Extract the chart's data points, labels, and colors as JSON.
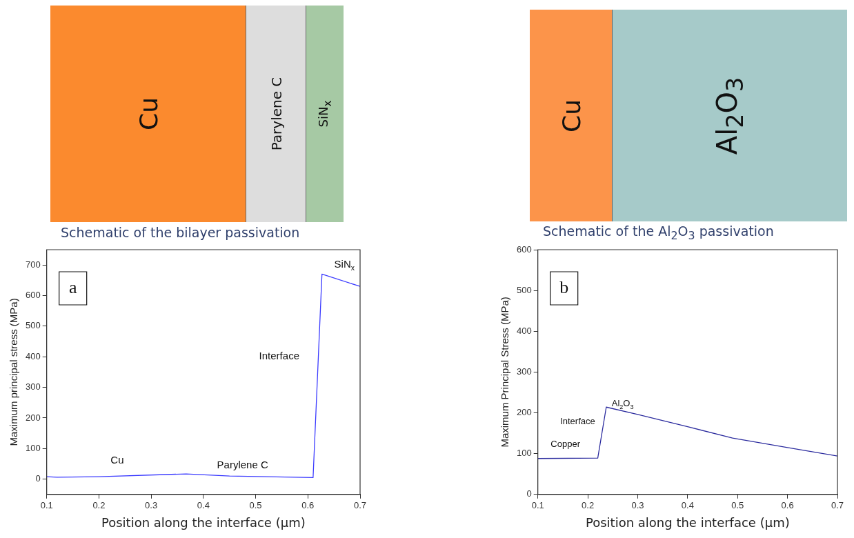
{
  "chart_data": [
    {
      "type": "line",
      "title": "Schematic of the bilayer passivation",
      "xlabel": "Position along the interface (μm)",
      "ylabel": "Maximum principal stress (MPa)",
      "xlim": [
        0.1,
        0.7
      ],
      "xticks": [
        0.1,
        0.2,
        0.3,
        0.4,
        0.5,
        0.6,
        0.7
      ],
      "ylim": [
        -50,
        750
      ],
      "yticks": [
        0,
        100,
        200,
        300,
        400,
        500,
        600,
        700
      ],
      "grid": false,
      "legend": false,
      "marker": "none",
      "line_style": "solid",
      "series": [
        {
          "color": "#3a3aff",
          "x": [
            0.1,
            0.12,
            0.2,
            0.367,
            0.45,
            0.61,
            0.627,
            0.7
          ],
          "values": [
            8,
            6,
            8,
            17,
            10,
            5,
            670,
            630
          ]
        }
      ],
      "annotations": [
        "a",
        "Cu",
        "Parylene C",
        "SiN$_{x}$",
        "Cu",
        "Parylene C",
        "Interface",
        "SiN$_{x}$"
      ]
    },
    {
      "type": "line",
      "title": "Schematic of the Al$_{2}$O$_{3}$ passivation",
      "xlabel": "Position along the interface (μm)",
      "ylabel": "Maximum Principal Stress (MPa)",
      "xlim": [
        0.1,
        0.7
      ],
      "xticks": [
        0.1,
        0.2,
        0.3,
        0.4,
        0.5,
        0.6,
        0.7
      ],
      "ylim": [
        0,
        600
      ],
      "yticks": [
        0,
        100,
        200,
        300,
        400,
        500,
        600
      ],
      "grid": false,
      "legend": false,
      "marker": "none",
      "line_style": "solid",
      "series": [
        {
          "color": "#2b2b9e",
          "x": [
            0.1,
            0.22,
            0.237,
            0.3,
            0.4,
            0.49,
            0.6,
            0.7
          ],
          "values": [
            88,
            89,
            214,
            196,
            166,
            138,
            115,
            94
          ]
        }
      ],
      "annotations": [
        "b",
        "Cu",
        "Al$_{2}$O$_{3}$",
        "Copper",
        "Interface",
        "Al$_{2}$O$_{3}$"
      ]
    }
  ]
}
